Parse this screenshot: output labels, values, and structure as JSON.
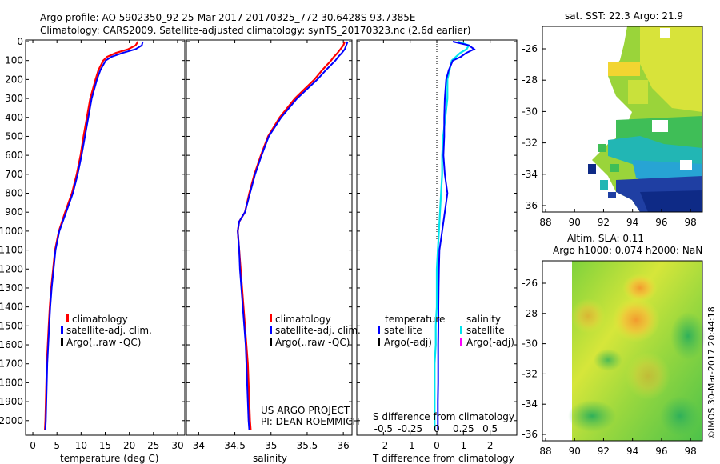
{
  "header": {
    "line1": "Argo profile: AO 5902350_92 25-Mar-2017 20170325_772 30.6428S 93.7385E",
    "line2": "Climatology: CARS2009. Satellite-adjusted climatology: synTS_20170323.nc (2.6d earlier)"
  },
  "colors": {
    "climatology": "#ff0000",
    "satellite": "#0000ff",
    "argo": "#000000",
    "salinity_satellite": "#00e5ee",
    "salinity_argo": "#ff00ff"
  },
  "depth_axis": {
    "ticks": [
      0,
      100,
      200,
      300,
      400,
      500,
      600,
      700,
      800,
      900,
      1000,
      1100,
      1200,
      1300,
      1400,
      1500,
      1600,
      1700,
      1800,
      1900,
      2000
    ],
    "ylim": [
      2060,
      0
    ]
  },
  "chart_data": [
    {
      "id": "temperature",
      "type": "line",
      "xlabel": "temperature (deg C)",
      "xlim": [
        -1.5,
        31.5
      ],
      "xticks": [
        0,
        5,
        10,
        15,
        20,
        25,
        30
      ],
      "legend": [
        "climatology",
        "satellite-adj. clim.",
        "Argo(..raw -QC)"
      ],
      "depth": [
        0,
        20,
        40,
        60,
        80,
        100,
        150,
        200,
        300,
        400,
        500,
        600,
        700,
        800,
        900,
        1000,
        1100,
        1200,
        1300,
        1400,
        1500,
        1600,
        1700,
        1800,
        1900,
        2000,
        2050
      ],
      "series": [
        {
          "name": "climatology",
          "values": [
            21.8,
            21.3,
            19.8,
            17.2,
            15.4,
            14.6,
            13.6,
            13.0,
            11.9,
            11.2,
            10.5,
            9.9,
            9.1,
            8.1,
            6.7,
            5.4,
            4.6,
            4.2,
            3.8,
            3.5,
            3.3,
            3.1,
            2.9,
            2.8,
            2.7,
            2.6,
            2.5
          ]
        },
        {
          "name": "satellite-adj. clim.",
          "values": [
            22.8,
            22.6,
            21.3,
            18.6,
            16.3,
            15.1,
            14.0,
            13.3,
            12.2,
            11.5,
            10.8,
            10.1,
            9.3,
            8.3,
            6.9,
            5.5,
            4.7,
            4.3,
            3.9,
            3.6,
            3.4,
            3.2,
            3.0,
            2.9,
            2.8,
            2.7,
            2.6
          ]
        },
        {
          "name": "Argo(..raw -QC)",
          "values": []
        }
      ]
    },
    {
      "id": "salinity",
      "type": "line",
      "xlabel": "salinity",
      "xlim": [
        33.83,
        36.12
      ],
      "xticks": [
        34,
        34.5,
        35,
        35.5,
        36
      ],
      "legend": [
        "climatology",
        "satellite-adj. clim.",
        "Argo(..raw -QC)"
      ],
      "depth": [
        0,
        20,
        40,
        60,
        80,
        100,
        150,
        200,
        300,
        400,
        500,
        600,
        700,
        800,
        900,
        950,
        1000,
        1100,
        1200,
        1300,
        1400,
        1500,
        1600,
        1700,
        1800,
        1900,
        2000,
        2050
      ],
      "series": [
        {
          "name": "climatology",
          "values": [
            36.02,
            36.0,
            35.96,
            35.92,
            35.87,
            35.83,
            35.71,
            35.6,
            35.33,
            35.12,
            34.96,
            34.86,
            34.77,
            34.7,
            34.64,
            34.56,
            34.54,
            34.56,
            34.58,
            34.6,
            34.62,
            34.64,
            34.66,
            34.68,
            34.69,
            34.7,
            34.71,
            34.72
          ]
        },
        {
          "name": "satellite-adj. clim.",
          "values": [
            36.06,
            36.04,
            36.02,
            35.98,
            35.93,
            35.89,
            35.76,
            35.64,
            35.36,
            35.14,
            34.97,
            34.87,
            34.78,
            34.71,
            34.64,
            34.56,
            34.54,
            34.56,
            34.57,
            34.59,
            34.61,
            34.63,
            34.65,
            34.66,
            34.67,
            34.68,
            34.69,
            34.7
          ]
        },
        {
          "name": "Argo(..raw -QC)",
          "values": []
        }
      ]
    },
    {
      "id": "difference",
      "type": "line",
      "xlabel": "T difference from climatology",
      "top_label": "S difference from climatology",
      "xlim": [
        -3,
        3
      ],
      "xticks": [
        -2,
        -1,
        0,
        1,
        2
      ],
      "top_ticks": [
        "-0.5",
        "-0.25",
        "0",
        "0.25",
        "0.5"
      ],
      "legend_titles": [
        "temperature",
        "salinity"
      ],
      "legend": [
        "satellite",
        "Argo(-adj)",
        "satellite",
        "Argo(-adj)"
      ],
      "depth": [
        0,
        20,
        40,
        60,
        80,
        100,
        150,
        200,
        300,
        400,
        500,
        600,
        700,
        800,
        900,
        1000,
        1100,
        1200,
        1300,
        1400,
        1500,
        1600,
        1700,
        1800,
        1900,
        2000,
        2050
      ],
      "series": [
        {
          "name": "temperature satellite",
          "values": [
            0.6,
            1.2,
            1.4,
            1.1,
            0.9,
            0.6,
            0.45,
            0.35,
            0.3,
            0.28,
            0.28,
            0.25,
            0.3,
            0.4,
            0.3,
            0.2,
            0.1,
            0.08,
            0.07,
            0.06,
            0.06,
            0.05,
            0.05,
            0.05,
            0.04,
            0.04,
            0.04
          ]
        },
        {
          "name": "salinity satellite",
          "values": [
            0.2,
            0.3,
            0.28,
            0.22,
            0.18,
            0.14,
            0.12,
            0.1,
            0.1,
            0.08,
            0.06,
            0.05,
            0.05,
            0.04,
            0.03,
            0.02,
            0.01,
            0.0,
            0.0,
            0.0,
            -0.01,
            -0.01,
            -0.02,
            -0.02,
            -0.02,
            -0.02,
            -0.02
          ]
        }
      ]
    }
  ],
  "sst_map": {
    "title": "sat. SST: 22.3 Argo: 21.9",
    "xticks": [
      "88",
      "90",
      "92",
      "94",
      "96",
      "98"
    ],
    "yticks": [
      "-26",
      "-28",
      "-30",
      "-32",
      "-34",
      "-36"
    ]
  },
  "sla_map": {
    "title1": "Altim. SLA: 0.11",
    "title2": "Argo h1000: 0.074 h2000: NaN",
    "xticks": [
      "88",
      "90",
      "92",
      "94",
      "96",
      "98"
    ],
    "yticks": [
      "-26",
      "-28",
      "-30",
      "-32",
      "-34",
      "-36"
    ]
  },
  "annotations": {
    "project": "US ARGO PROJECT",
    "pi": "PI: DEAN ROEMMICH",
    "credit": "©IMOS 30-Mar-2017 20:44:18"
  }
}
